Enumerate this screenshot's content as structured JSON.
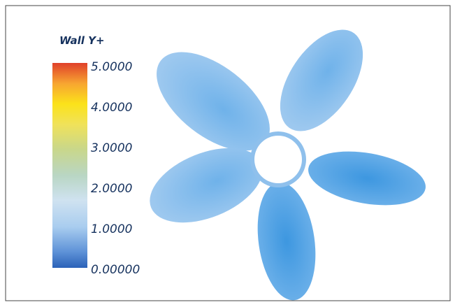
{
  "legend": {
    "title": "Wall Y+",
    "labels": [
      "5.0000",
      "4.0000",
      "3.0000",
      "2.0000",
      "1.0000",
      "0.00000"
    ]
  }
}
